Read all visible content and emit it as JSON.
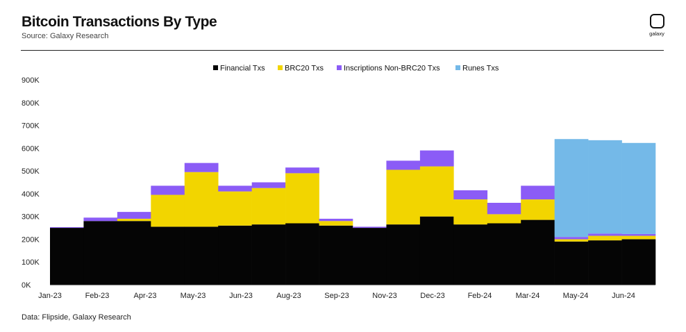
{
  "header": {
    "title": "Bitcoin Transactions By Type",
    "subtitle": "Source: Galaxy Research",
    "logo_text": "galaxy"
  },
  "footer": {
    "note": "Data: Flipside, Galaxy Research"
  },
  "colors": {
    "financial": "#050505",
    "brc20": "#f2d500",
    "inscriptions": "#8b5cf6",
    "runes": "#74b9e8"
  },
  "chart_data": {
    "type": "bar",
    "stacked": true,
    "title": "Bitcoin Transactions By Type",
    "subtitle": "Source: Galaxy Research",
    "xlabel": "",
    "ylabel": "",
    "ylim": [
      0,
      900000
    ],
    "y_ticks": [
      0,
      100000,
      200000,
      300000,
      400000,
      500000,
      600000,
      700000,
      800000,
      900000
    ],
    "y_tick_labels": [
      "0K",
      "100K",
      "200K",
      "300K",
      "400K",
      "500K",
      "600K",
      "700K",
      "800K",
      "900K"
    ],
    "x_tick_labels": [
      "Jan-23",
      "Feb-23",
      "Apr-23",
      "May-23",
      "Jun-23",
      "Aug-23",
      "Sep-23",
      "Nov-23",
      "Dec-23",
      "Feb-24",
      "Mar-24",
      "May-24",
      "Jun-24"
    ],
    "legend_position": "top-center",
    "grid": false,
    "categories": [
      "2023-01",
      "2023-02",
      "2023-03",
      "2023-04",
      "2023-05",
      "2023-06",
      "2023-07",
      "2023-08",
      "2023-09",
      "2023-10",
      "2023-11",
      "2023-12",
      "2024-01",
      "2024-02",
      "2024-03",
      "2024-04",
      "2024-05",
      "2024-06"
    ],
    "series": [
      {
        "name": "Financial Txs",
        "color": "#050505",
        "values": [
          250000,
          280000,
          280000,
          255000,
          255000,
          260000,
          265000,
          270000,
          260000,
          250000,
          265000,
          300000,
          265000,
          270000,
          285000,
          190000,
          195000,
          200000
        ]
      },
      {
        "name": "BRC20 Txs",
        "color": "#f2d500",
        "values": [
          0,
          0,
          10000,
          140000,
          240000,
          150000,
          160000,
          220000,
          20000,
          0,
          240000,
          220000,
          110000,
          40000,
          90000,
          10000,
          20000,
          15000
        ]
      },
      {
        "name": "Inscriptions Non-BRC20 Txs",
        "color": "#8b5cf6",
        "values": [
          3000,
          15000,
          30000,
          40000,
          40000,
          25000,
          25000,
          25000,
          10000,
          5000,
          40000,
          70000,
          40000,
          50000,
          60000,
          10000,
          10000,
          8000
        ]
      },
      {
        "name": "Runes Txs",
        "color": "#74b9e8",
        "values": [
          0,
          0,
          0,
          0,
          0,
          0,
          0,
          0,
          0,
          0,
          0,
          0,
          0,
          0,
          0,
          430000,
          410000,
          400000
        ]
      }
    ]
  }
}
